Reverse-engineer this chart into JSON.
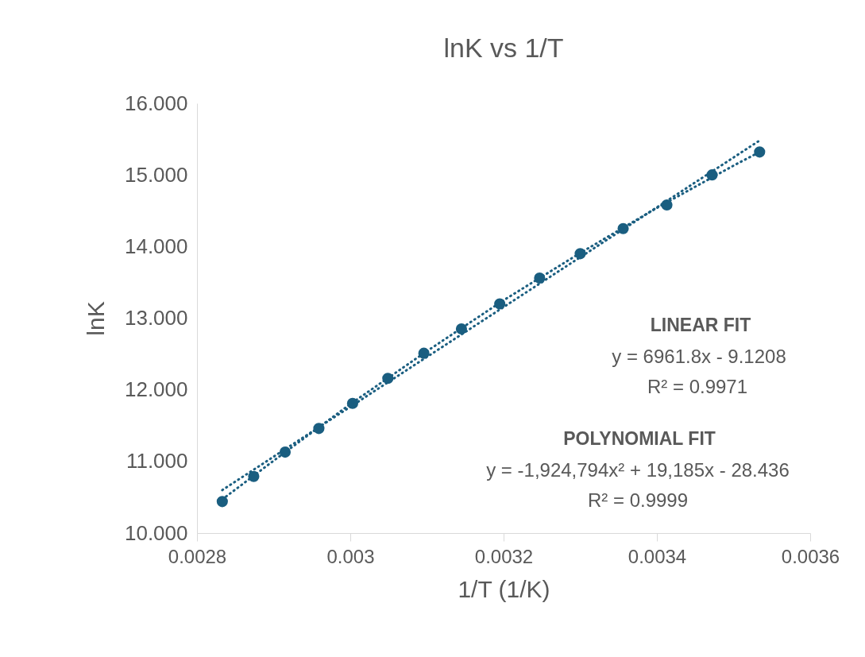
{
  "chart_data": {
    "type": "scatter",
    "title": "lnK vs 1/T",
    "xlabel": "1/T (1/K)",
    "ylabel": "lnK",
    "xlim": [
      0.0028,
      0.0036
    ],
    "xticks": [
      0.0028,
      0.003,
      0.0032,
      0.0034,
      0.0036
    ],
    "ylim": [
      10,
      16
    ],
    "yticks": [
      {
        "value": 10,
        "label": "10.000"
      },
      {
        "value": 11,
        "label": "11.000"
      },
      {
        "value": 12,
        "label": "12.000"
      },
      {
        "value": 13,
        "label": "13.000"
      },
      {
        "value": 14,
        "label": "14.000"
      },
      {
        "value": 15,
        "label": "15.000"
      },
      {
        "value": 16,
        "label": "16.000"
      }
    ],
    "grid": false,
    "series": [
      {
        "type": "scatter",
        "marker": "circle",
        "color": "#1a5e80",
        "x": [
          0.002833,
          0.002874,
          0.002915,
          0.002959,
          0.003003,
          0.003049,
          0.003096,
          0.003145,
          0.003195,
          0.003247,
          0.0033,
          0.003356,
          0.003413,
          0.003472,
          0.003534
        ],
        "values": [
          10.44,
          10.79,
          11.13,
          11.46,
          11.81,
          12.16,
          12.51,
          12.85,
          13.2,
          13.56,
          13.9,
          14.25,
          14.58,
          15.0,
          15.32
        ]
      },
      {
        "type": "line",
        "marker": "none",
        "line_style": "dotted",
        "color": "#1a5e80",
        "x": [
          0.002833,
          0.003534
        ],
        "values": [
          10.6,
          15.48
        ]
      },
      {
        "type": "line",
        "marker": "none",
        "line_style": "dotted",
        "color": "#1a5e80",
        "x": [
          0.002833,
          0.0029,
          0.003,
          0.0031,
          0.0032,
          0.0033,
          0.0034,
          0.0035,
          0.003534
        ],
        "values": [
          10.47,
          11.01,
          11.8,
          12.54,
          13.25,
          13.91,
          14.54,
          15.13,
          15.32
        ]
      }
    ],
    "annotations": [
      "LINEAR FIT",
      "y = 6961.8x - 9.1208",
      "R² = 0.9971",
      "POLYNOMIAL FIT",
      "y = -1,924,794x² + 19,185x - 28.436",
      "R² = 0.9999"
    ]
  }
}
